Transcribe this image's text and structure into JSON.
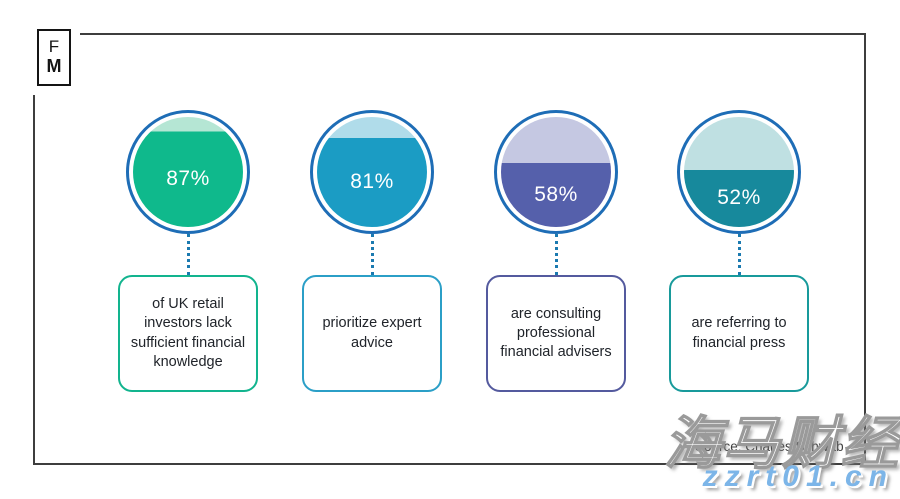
{
  "logo": {
    "line1": "F",
    "line2": "M"
  },
  "colors": {
    "ring": "#1e6db6",
    "connector": "#1b7ab0",
    "frame": "#3e3e3e",
    "watermark_url_blue": "#7cb5e8"
  },
  "stats": [
    {
      "percent": "87%",
      "value": 87,
      "fill": "#0fb98c",
      "remainder": "#b5e6d4",
      "box_border": "#12b48e",
      "label": "of UK retail investors lack sufficient financial knowledge"
    },
    {
      "percent": "81%",
      "value": 81,
      "fill": "#1b9cc4",
      "remainder": "#b0dcea",
      "box_border": "#2b9fc7",
      "label": "prioritize expert advice"
    },
    {
      "percent": "58%",
      "value": 58,
      "fill": "#5560ab",
      "remainder": "#c5c8e2",
      "box_border": "#545a9e",
      "label": "are consulting professional financial advisers"
    },
    {
      "percent": "52%",
      "value": 52,
      "fill": "#17899c",
      "remainder": "#bfe0e2",
      "box_border": "#189a9b",
      "label": "are referring to financial press"
    }
  ],
  "source": "Source: Charles Schwab",
  "watermarks": {
    "cjk": "海马财经",
    "url": "zzrt01.cn"
  },
  "chart_data": {
    "type": "pie",
    "subtype": "percentage-fill-circle-infographic",
    "categories": [
      "of UK retail investors lack sufficient financial knowledge",
      "prioritize expert advice",
      "are consulting professional financial advisers",
      "are referring to financial press"
    ],
    "values": [
      87,
      81,
      58,
      52
    ],
    "colors": [
      "#0fb98c",
      "#1b9cc4",
      "#5560ab",
      "#17899c"
    ],
    "title": "",
    "source": "Source: Charles Schwab",
    "legend": false
  }
}
